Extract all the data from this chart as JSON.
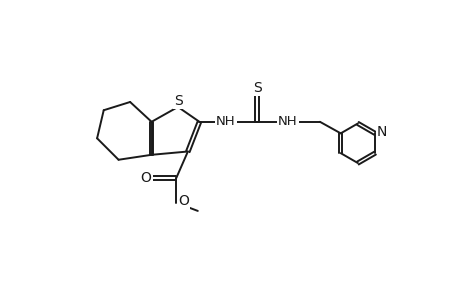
{
  "background_color": "#ffffff",
  "line_color": "#1a1a1a",
  "line_width": 1.4,
  "font_size": 9.5,
  "figsize": [
    4.6,
    3.0
  ],
  "dpi": 100,
  "xlim": [
    -0.3,
    10.5
  ],
  "ylim": [
    0.3,
    5.6
  ]
}
